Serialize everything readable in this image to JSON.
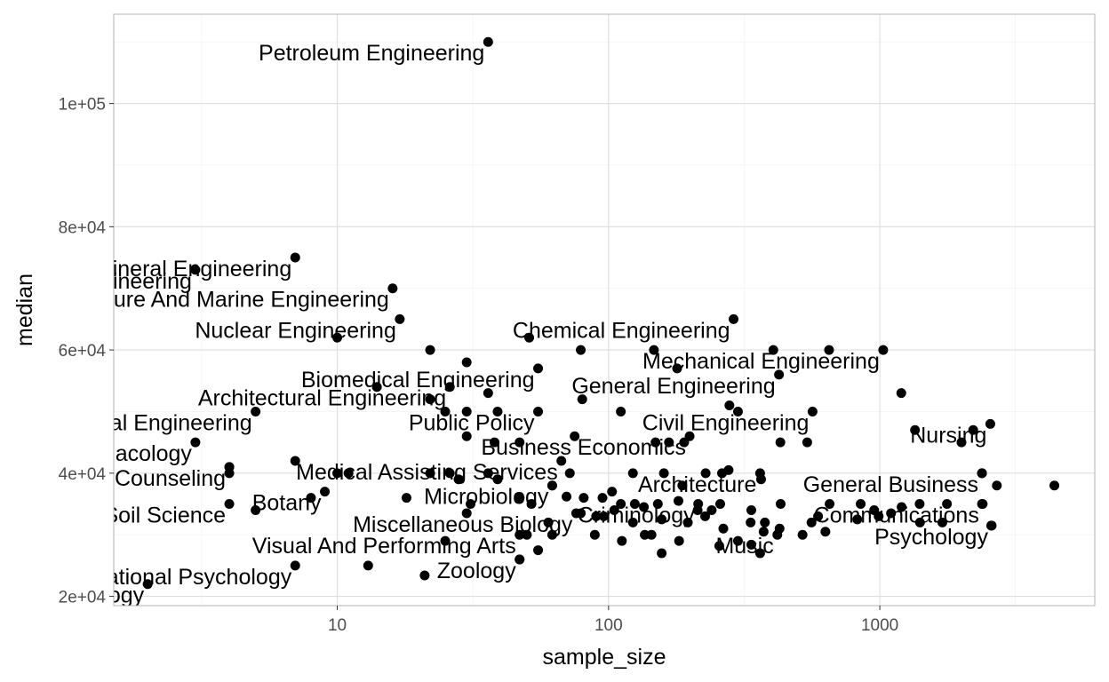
{
  "chart_data": {
    "type": "scatter",
    "title": "",
    "xlabel": "sample_size",
    "ylabel": "median",
    "x_scale": "log10",
    "xlim": [
      1.5,
      6200
    ],
    "ylim": [
      18500,
      114500
    ],
    "x_ticks": [
      {
        "value": 10,
        "label": "10"
      },
      {
        "value": 100,
        "label": "100"
      },
      {
        "value": 1000,
        "label": "1000"
      }
    ],
    "y_ticks": [
      {
        "value": 20000,
        "label": "2e+04"
      },
      {
        "value": 40000,
        "label": "4e+04"
      },
      {
        "value": 60000,
        "label": "6e+04"
      },
      {
        "value": 80000,
        "label": "8e+04"
      },
      {
        "value": 100000,
        "label": "1e+05"
      }
    ],
    "grid": true,
    "point_color": "#000000",
    "labeled_points": [
      {
        "label": "Petroleum Engineering",
        "x": 36,
        "y": 110000
      },
      {
        "label": "Mining And Mineral Engineering",
        "x": 7,
        "y": 75000
      },
      {
        "label": "Metallurgical Engineering",
        "x": 3,
        "y": 73000
      },
      {
        "label": "Naval Architecture And Marine Engineering",
        "x": 16,
        "y": 70000
      },
      {
        "label": "Chemical Engineering",
        "x": 289,
        "y": 65000
      },
      {
        "label": "Nuclear Engineering",
        "x": 17,
        "y": 65000
      },
      {
        "label": "Biomedical Engineering",
        "x": 55,
        "y": 57000
      },
      {
        "label": "Mechanical Engineering",
        "x": 1029,
        "y": 60000
      },
      {
        "label": "General Engineering",
        "x": 425,
        "y": 56000
      },
      {
        "label": "Architectural Engineering",
        "x": 26,
        "y": 54000
      },
      {
        "label": "Geological And Geophysical Engineering",
        "x": 5,
        "y": 50000
      },
      {
        "label": "Civil Engineering",
        "x": 565,
        "y": 50000
      },
      {
        "label": "Public Policy",
        "x": 55,
        "y": 50000
      },
      {
        "label": "Nursing",
        "x": 2554,
        "y": 48000
      },
      {
        "label": "Business Economics",
        "x": 199,
        "y": 46000
      },
      {
        "label": "Pharmacology",
        "x": 3,
        "y": 45000
      },
      {
        "label": "School Student Counseling",
        "x": 4,
        "y": 41000
      },
      {
        "label": "Medical Assisting Services",
        "x": 67,
        "y": 42000
      },
      {
        "label": "Architecture",
        "x": 362,
        "y": 40000
      },
      {
        "label": "General Business",
        "x": 2380,
        "y": 40000
      },
      {
        "label": "Microbiology",
        "x": 62,
        "y": 38000
      },
      {
        "label": "Botany",
        "x": 9,
        "y": 37000
      },
      {
        "label": "Soil Science",
        "x": 4,
        "y": 35000
      },
      {
        "label": "Criminology",
        "x": 214,
        "y": 35000
      },
      {
        "label": "Communications",
        "x": 2394,
        "y": 35000
      },
      {
        "label": "Miscellaneous Biology",
        "x": 76,
        "y": 33500
      },
      {
        "label": "Music",
        "x": 419,
        "y": 30000
      },
      {
        "label": "Psychology",
        "x": 2584,
        "y": 31500
      },
      {
        "label": "Visual And Performing Arts",
        "x": 47,
        "y": 30000
      },
      {
        "label": "Zoology",
        "x": 47,
        "y": 26000
      },
      {
        "label": "Counseling Psychology",
        "x": 2,
        "y": 22000
      },
      {
        "label": "Educational Psychology",
        "x": 7,
        "y": 25000
      }
    ],
    "other_points": [
      [
        13,
        25000
      ],
      [
        21,
        23400
      ],
      [
        25,
        29000
      ],
      [
        47,
        26000
      ],
      [
        50,
        30000
      ],
      [
        55,
        27500
      ],
      [
        62,
        30000
      ],
      [
        89,
        30000
      ],
      [
        112,
        29000
      ],
      [
        136,
        30000
      ],
      [
        144,
        30000
      ],
      [
        157,
        27000
      ],
      [
        182,
        29000
      ],
      [
        256,
        28200
      ],
      [
        300,
        29000
      ],
      [
        336,
        28400
      ],
      [
        362,
        27000
      ],
      [
        373,
        30500
      ],
      [
        519,
        30000
      ],
      [
        630,
        30500
      ],
      [
        30,
        33500
      ],
      [
        60,
        32000
      ],
      [
        79,
        33500
      ],
      [
        96,
        33000
      ],
      [
        105,
        34000
      ],
      [
        123,
        32000
      ],
      [
        135,
        34500
      ],
      [
        157,
        32500
      ],
      [
        196,
        32000
      ],
      [
        227,
        33000
      ],
      [
        265,
        31000
      ],
      [
        334,
        32000
      ],
      [
        377,
        32000
      ],
      [
        427,
        31000
      ],
      [
        560,
        32000
      ],
      [
        592,
        33000
      ],
      [
        826,
        32500
      ],
      [
        990,
        33000
      ],
      [
        1100,
        33500
      ],
      [
        1406,
        32000
      ],
      [
        1700,
        32000
      ],
      [
        2574,
        31500
      ],
      [
        18,
        36000
      ],
      [
        31,
        35000
      ],
      [
        47,
        36000
      ],
      [
        52,
        35000
      ],
      [
        70,
        36200
      ],
      [
        81,
        36000
      ],
      [
        90,
        33000
      ],
      [
        111,
        35000
      ],
      [
        125,
        35000
      ],
      [
        152,
        35000
      ],
      [
        181,
        35500
      ],
      [
        213,
        34000
      ],
      [
        240,
        34000
      ],
      [
        258,
        35000
      ],
      [
        336,
        34000
      ],
      [
        431,
        35000
      ],
      [
        653,
        35000
      ],
      [
        850,
        35000
      ],
      [
        953,
        34000
      ],
      [
        1203,
        34500
      ],
      [
        1402,
        35000
      ],
      [
        1768,
        35000
      ],
      [
        2380,
        35000
      ],
      [
        22,
        40000
      ],
      [
        26,
        40000
      ],
      [
        28,
        39000
      ],
      [
        36,
        40000
      ],
      [
        39,
        39000
      ],
      [
        47,
        36000
      ],
      [
        62,
        38000
      ],
      [
        72,
        40000
      ],
      [
        95,
        36000
      ],
      [
        103,
        37000
      ],
      [
        123,
        40000
      ],
      [
        160,
        40000
      ],
      [
        187,
        38000
      ],
      [
        228,
        40000
      ],
      [
        262,
        40000
      ],
      [
        277,
        40500
      ],
      [
        365,
        39000
      ],
      [
        2380,
        40000
      ],
      [
        2700,
        38000
      ],
      [
        4400,
        38000
      ],
      [
        30,
        46000
      ],
      [
        36,
        53000
      ],
      [
        38,
        45000
      ],
      [
        47,
        45000
      ],
      [
        75,
        46000
      ],
      [
        111,
        50000
      ],
      [
        149,
        45000
      ],
      [
        167,
        45000
      ],
      [
        190,
        45000
      ],
      [
        430,
        45000
      ],
      [
        540,
        45000
      ],
      [
        1200,
        53000
      ],
      [
        1348,
        47000
      ],
      [
        2000,
        45000
      ],
      [
        2209,
        47000
      ],
      [
        22,
        52000
      ],
      [
        25,
        50000
      ],
      [
        30,
        50000
      ],
      [
        39,
        50000
      ],
      [
        80,
        52000
      ],
      [
        300,
        50000
      ],
      [
        279,
        51000
      ],
      [
        22,
        60000
      ],
      [
        30,
        58000
      ],
      [
        51,
        62000
      ],
      [
        79,
        60000
      ],
      [
        147,
        60000
      ],
      [
        179,
        57000
      ],
      [
        405,
        60000
      ],
      [
        650,
        60000
      ],
      [
        10,
        62000
      ],
      [
        14,
        54000
      ],
      [
        7,
        42000
      ],
      [
        10,
        40000
      ],
      [
        11,
        40000
      ],
      [
        4,
        40000
      ],
      [
        8,
        36000
      ],
      [
        5,
        34000
      ],
      [
        4,
        41000
      ]
    ]
  }
}
